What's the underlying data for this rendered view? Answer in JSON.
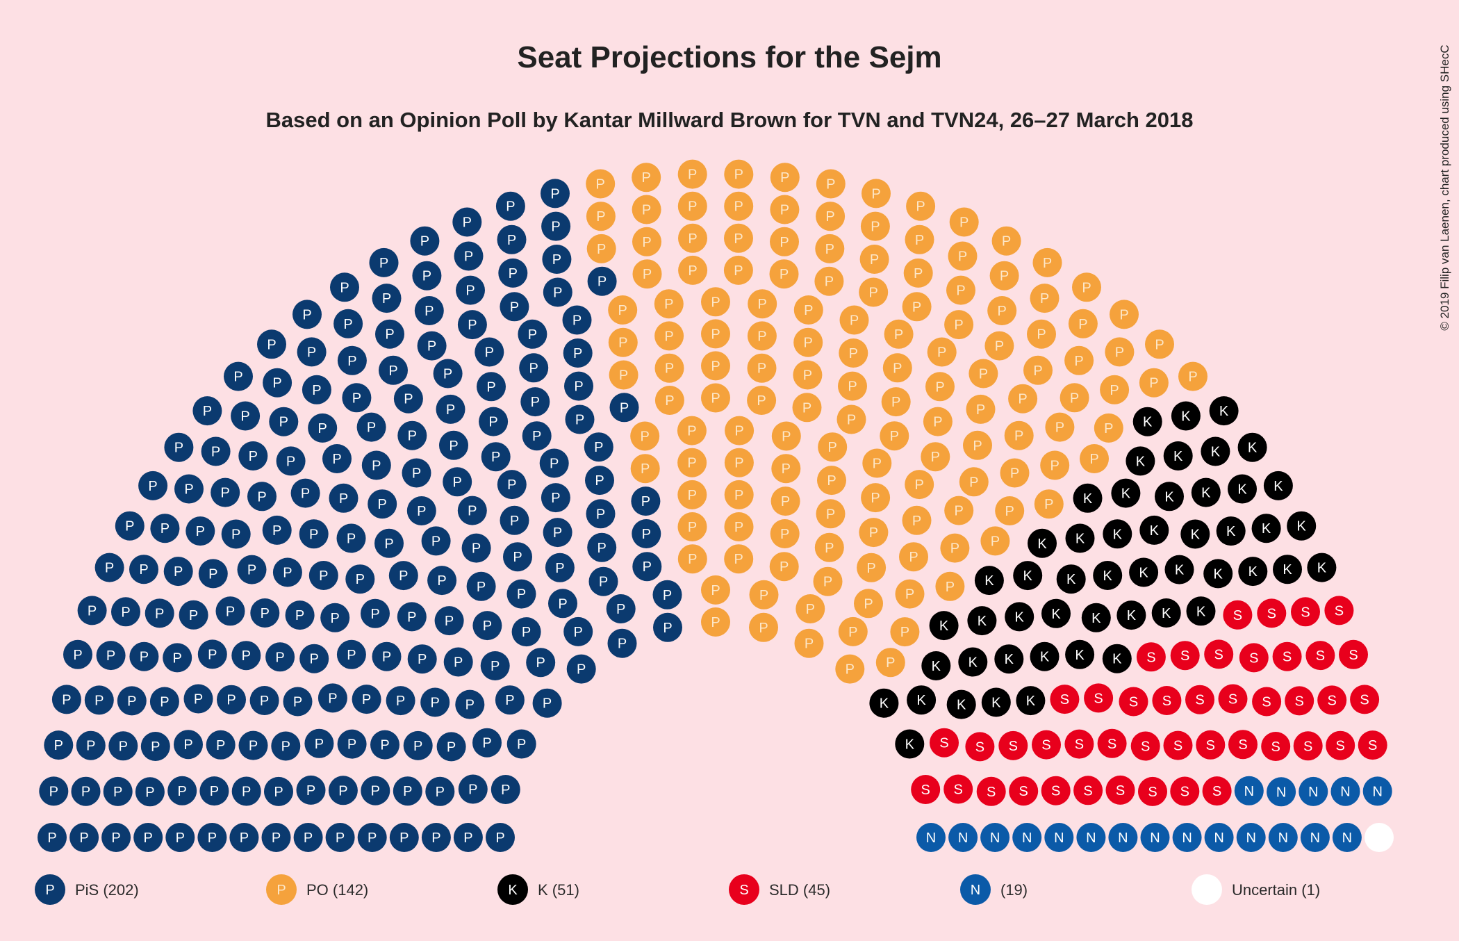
{
  "chart_data": {
    "type": "parliament",
    "title": "Seat Projections for the Sejm",
    "subtitle": "Based on an Opinion Poll by Kantar Millward Brown for TVN and TVN24, 26–27 March 2018",
    "credit": "© 2019 Filip van Laenen, chart produced using SHecC",
    "total_seats": 460,
    "parties": [
      {
        "label": "PiS (202)",
        "symbol": "P",
        "seats": 202,
        "color": "#0b3a6f"
      },
      {
        "label": "PO (142)",
        "symbol": "P",
        "seats": 142,
        "color": "#f5a23c"
      },
      {
        "label": "K (51)",
        "symbol": "K",
        "seats": 51,
        "color": "#000000"
      },
      {
        "label": "SLD (45)",
        "symbol": "S",
        "seats": 45,
        "color": "#e8001c"
      },
      {
        "label": "(19)",
        "symbol": "N",
        "seats": 19,
        "color": "#0b5aa8"
      },
      {
        "label": "Uncertain (1)",
        "symbol": "",
        "seats": 1,
        "color": "#ffffff"
      }
    ]
  }
}
